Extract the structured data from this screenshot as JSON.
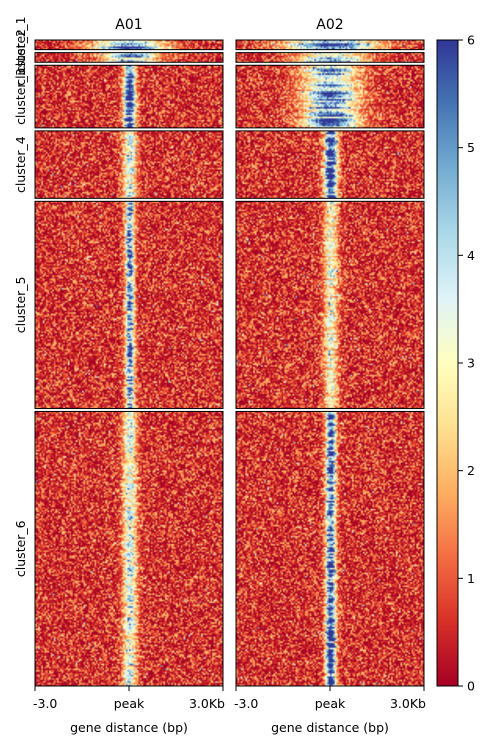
{
  "chart_data": {
    "type": "heatmap",
    "samples": [
      "A01",
      "A02"
    ],
    "clusters": [
      "cluster_1",
      "cluster_2",
      "cluster_3",
      "cluster_4",
      "cluster_5",
      "cluster_6"
    ],
    "cluster_relative_sizes": [
      2,
      2,
      13,
      14,
      43,
      57
    ],
    "x_ticks": [
      "-3.0",
      "peak",
      "3.0Kb"
    ],
    "x_range_bp": [
      -3000,
      3000
    ],
    "xlabel": "gene distance (bp)",
    "colorbar": {
      "min": 0,
      "max": 6,
      "ticks": [
        "0",
        "1",
        "2",
        "3",
        "4",
        "5",
        "6"
      ],
      "colormap": "RdYlBu"
    },
    "peak_signal": {
      "A01": [
        5,
        4,
        5.5,
        3,
        4.5,
        3
      ],
      "A02": [
        5,
        4,
        4.5,
        6,
        2.5,
        5.5
      ]
    },
    "peak_width_bp": {
      "A01": [
        1500,
        1200,
        250,
        300,
        200,
        300
      ],
      "A02": [
        2000,
        1500,
        1200,
        280,
        300,
        220
      ]
    },
    "background_level": 0.9
  }
}
